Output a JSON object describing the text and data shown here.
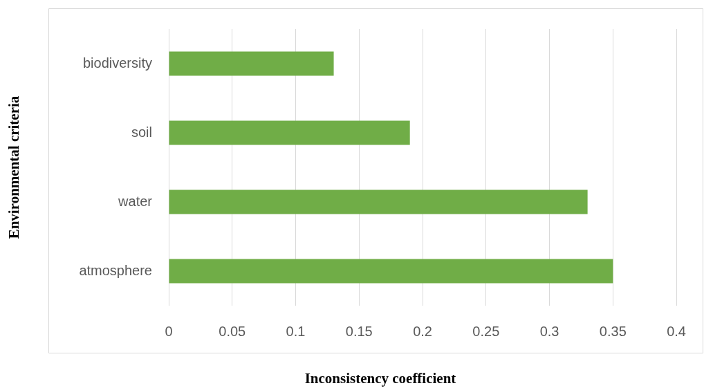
{
  "chart_data": {
    "type": "bar",
    "orientation": "horizontal",
    "xlabel": "Inconsistency coefficient",
    "ylabel": "Environmental criteria",
    "categories": [
      "biodiversity",
      "soil",
      "water",
      "atmosphere"
    ],
    "values": [
      0.13,
      0.19,
      0.33,
      0.35
    ],
    "color": "#70ad47",
    "xlim": [
      0,
      0.4
    ],
    "xticks": [
      0,
      0.05,
      0.1,
      0.15,
      0.2,
      0.25,
      0.3,
      0.35,
      0.4
    ],
    "grid": "x",
    "legend": false
  }
}
